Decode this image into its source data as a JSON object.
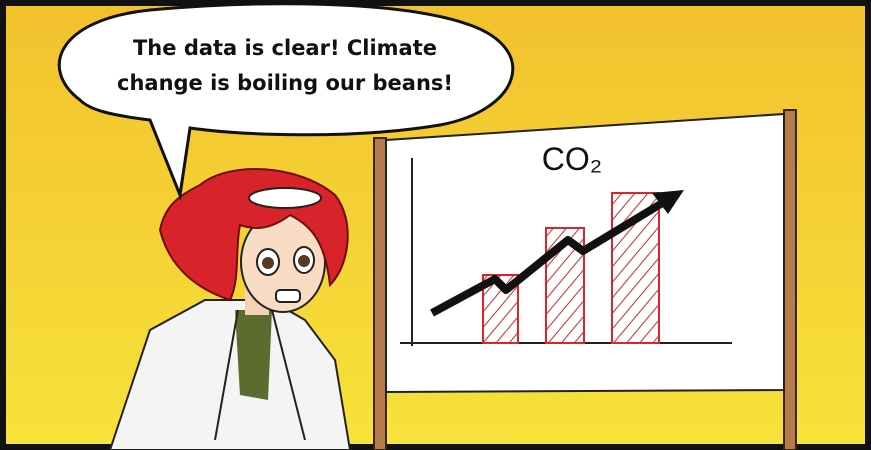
{
  "speech_bubble": {
    "lines": [
      "The data is clear! Climate",
      "change is boiling our beans!"
    ]
  },
  "whiteboard": {
    "label": "CO₂"
  }
}
